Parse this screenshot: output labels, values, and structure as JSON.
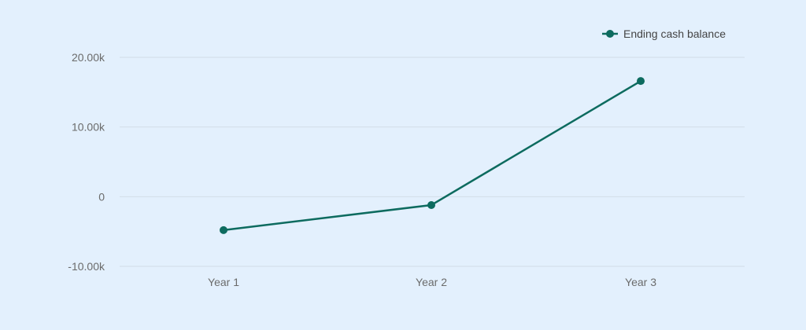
{
  "colors": {
    "background": "#e3f0fd",
    "series": "#0d6b5f",
    "grid": "#d2dde8",
    "tick_text": "#6b6b6b",
    "legend_text": "#444444"
  },
  "chart_data": {
    "type": "line",
    "categories": [
      "Year 1",
      "Year 2",
      "Year 3"
    ],
    "series": [
      {
        "name": "Ending cash balance",
        "values": [
          -4800,
          -1200,
          16600
        ],
        "marker": "circle"
      }
    ],
    "ylim": [
      -10000,
      20000
    ],
    "yticks": [
      -10000,
      0,
      10000,
      20000
    ],
    "ytick_labels": [
      "-10.00k",
      "0",
      "10.00k",
      "20.00k"
    ],
    "grid": true,
    "legend_position": "top-right"
  }
}
